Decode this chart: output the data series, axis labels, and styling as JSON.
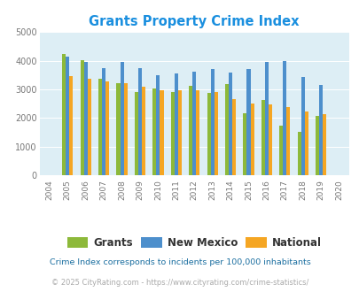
{
  "title": "Grants Property Crime Index",
  "years": [
    2004,
    2005,
    2006,
    2007,
    2008,
    2009,
    2010,
    2011,
    2012,
    2013,
    2014,
    2015,
    2016,
    2017,
    2018,
    2019,
    2020
  ],
  "grants": [
    null,
    4250,
    4020,
    3380,
    3220,
    2900,
    3020,
    2900,
    3130,
    2870,
    3200,
    2170,
    2630,
    1730,
    1530,
    2060,
    null
  ],
  "new_mexico": [
    null,
    4130,
    3960,
    3740,
    3950,
    3750,
    3480,
    3570,
    3630,
    3720,
    3580,
    3700,
    3950,
    3980,
    3440,
    3140,
    null
  ],
  "national": [
    null,
    3460,
    3360,
    3280,
    3230,
    3080,
    2980,
    2960,
    2960,
    2900,
    2660,
    2510,
    2480,
    2380,
    2230,
    2140,
    null
  ],
  "grants_color": "#8db93a",
  "nm_color": "#4d8fcc",
  "national_color": "#f5a623",
  "bg_color": "#ddeef5",
  "ylim": [
    0,
    5000
  ],
  "yticks": [
    0,
    1000,
    2000,
    3000,
    4000,
    5000
  ],
  "legend_labels": [
    "Grants",
    "New Mexico",
    "National"
  ],
  "footnote1": "Crime Index corresponds to incidents per 100,000 inhabitants",
  "footnote2": "© 2025 CityRating.com - https://www.cityrating.com/crime-statistics/",
  "title_color": "#1a8fdf",
  "legend_text_color": "#333333",
  "footnote1_color": "#1a6ea0",
  "footnote2_color": "#aaaaaa"
}
